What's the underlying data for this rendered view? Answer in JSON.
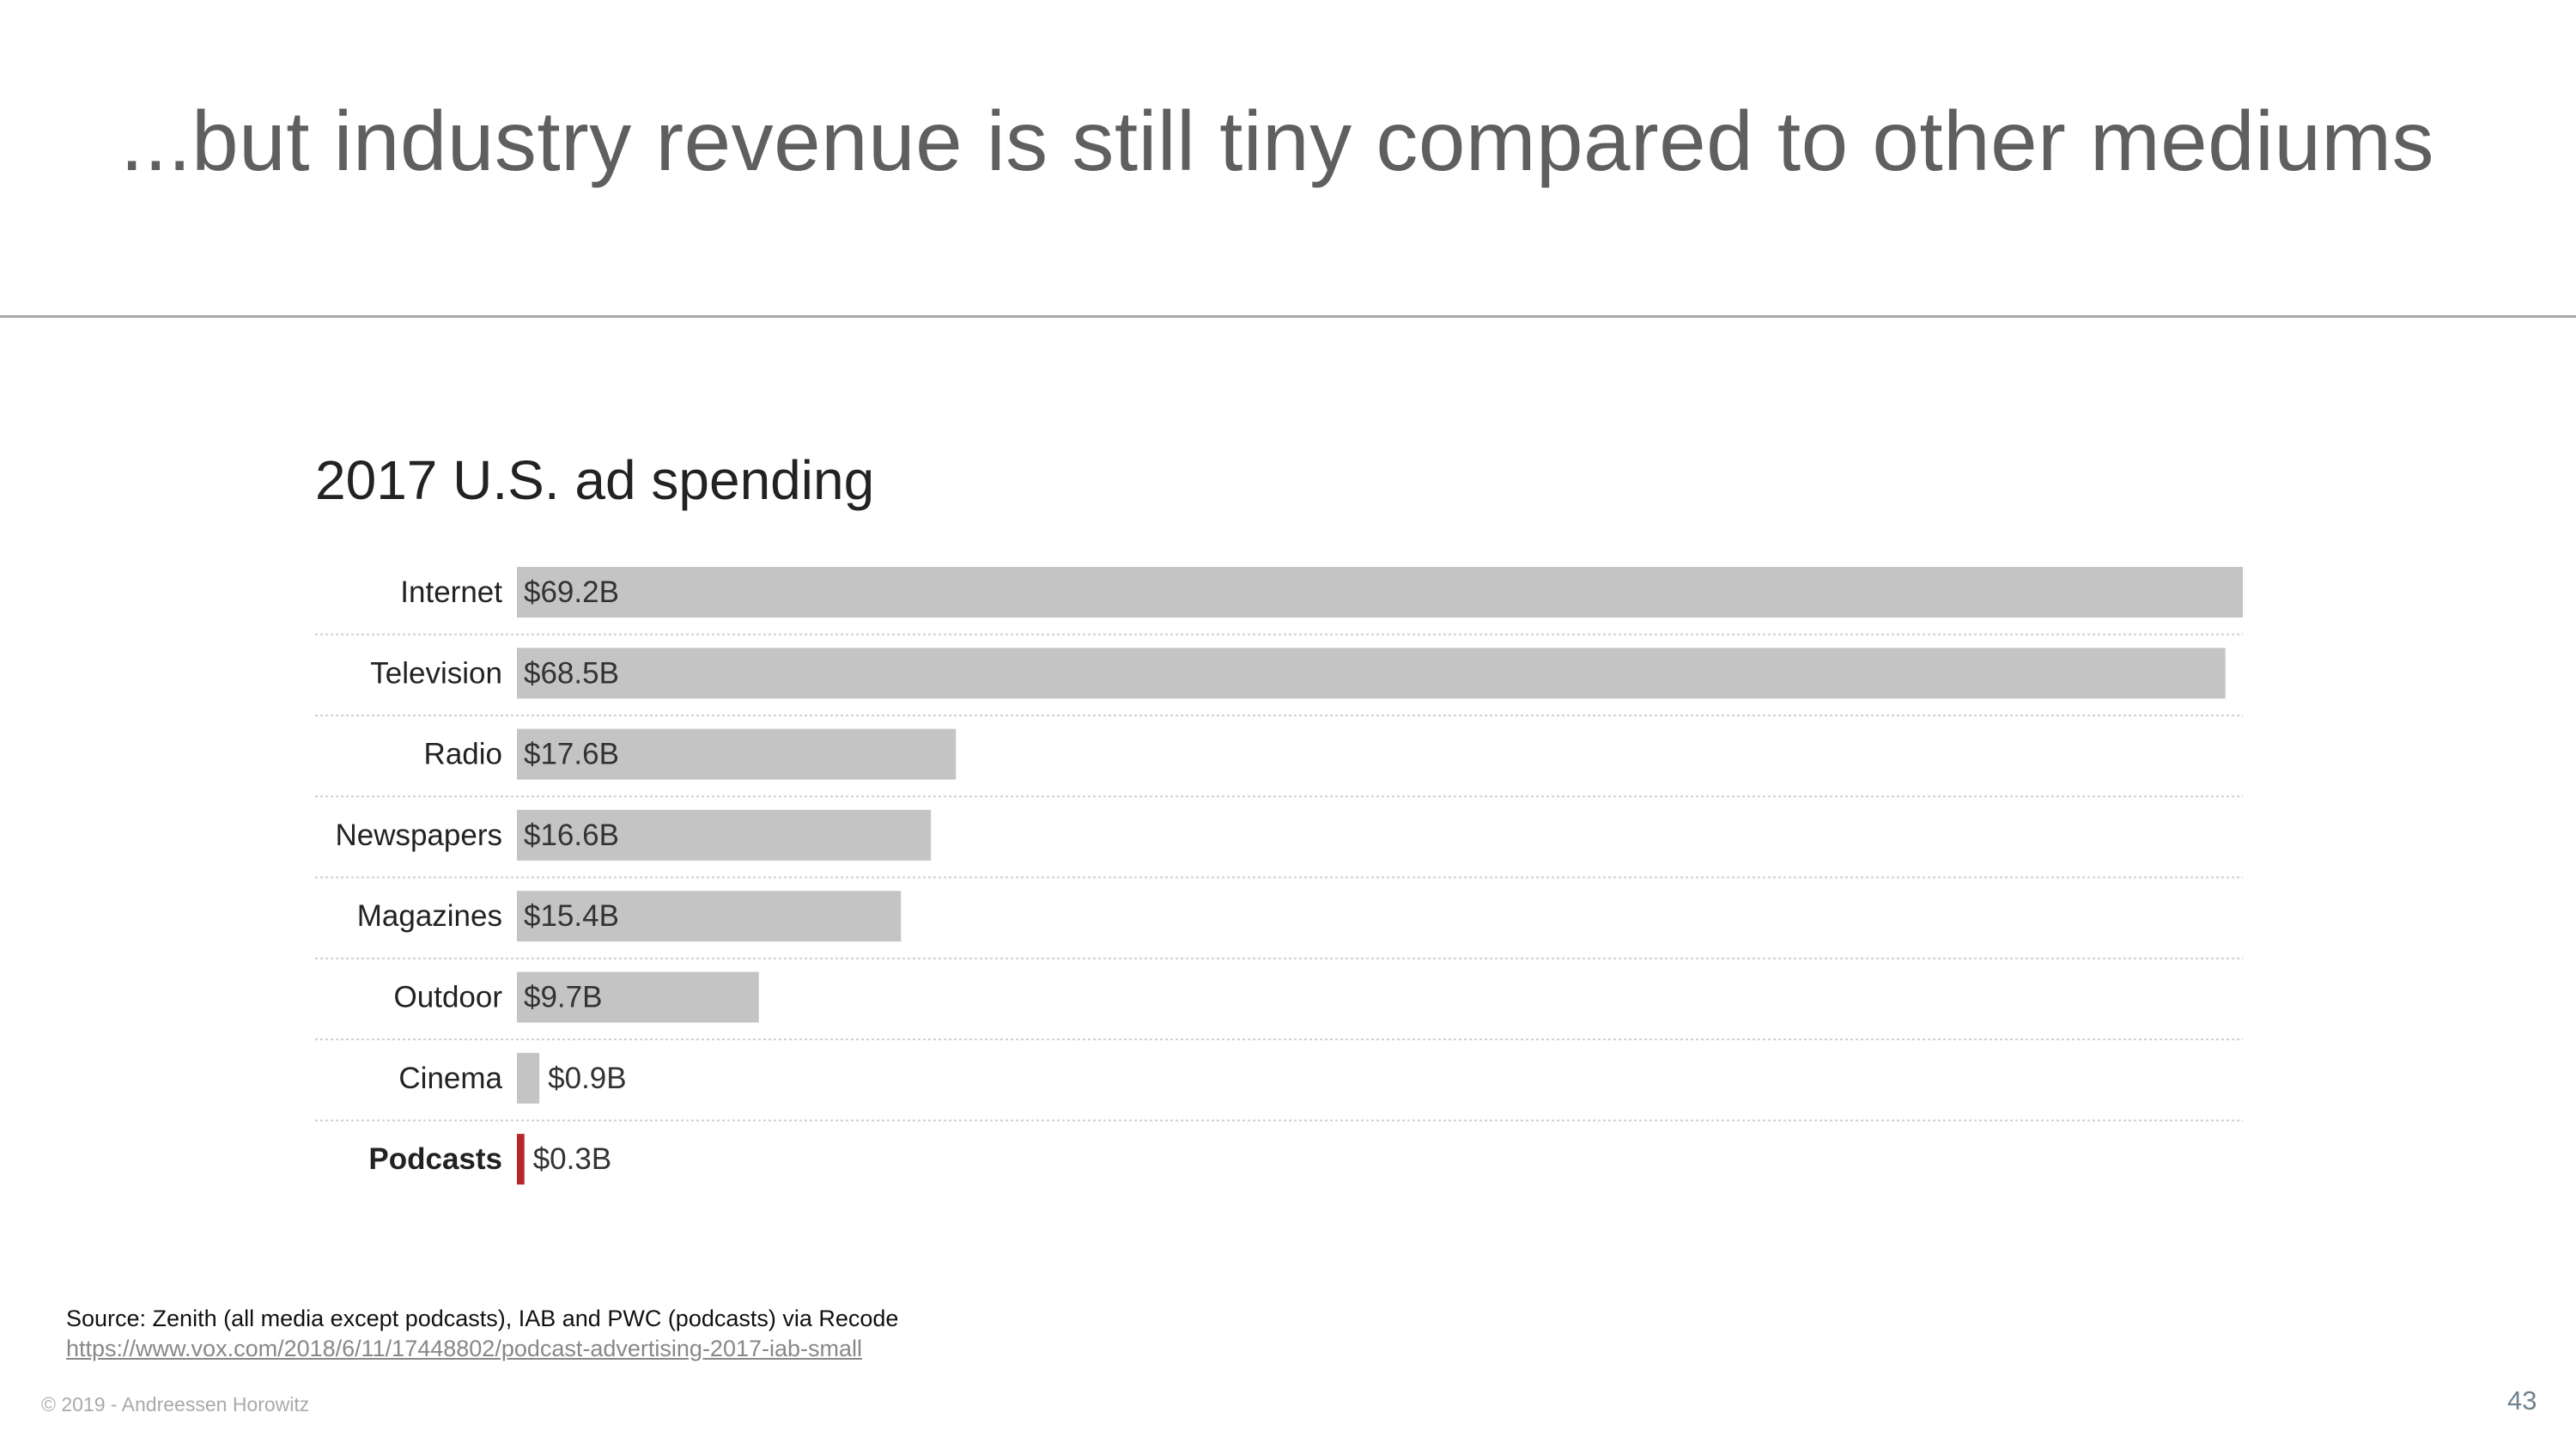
{
  "slide": {
    "title": "...but industry revenue is still tiny compared to other mediums",
    "source": "Source: Zenith (all media except podcasts), IAB and PWC (podcasts) via Recode",
    "source_link": "https://www.vox.com/2018/6/11/17448802/podcast-advertising-2017-iab-small",
    "copyright": "© 2019 - Andreessen Horowitz",
    "page_number": "43"
  },
  "chart_data": {
    "type": "bar",
    "orientation": "horizontal",
    "title": "2017 U.S. ad spending",
    "xlabel": "",
    "ylabel": "",
    "unit": "$B",
    "xlim": [
      0,
      69.2
    ],
    "grid": false,
    "categories": [
      "Internet",
      "Television",
      "Radio",
      "Newspapers",
      "Magazines",
      "Outdoor",
      "Cinema",
      "Podcasts"
    ],
    "values": [
      69.2,
      68.5,
      17.6,
      16.6,
      15.4,
      9.7,
      0.9,
      0.3
    ],
    "labels": [
      "$69.2B",
      "$68.5B",
      "$17.6B",
      "$16.6B",
      "$15.4B",
      "$9.7B",
      "$0.9B",
      "$0.3B"
    ],
    "highlight": "Podcasts",
    "colors": {
      "bar": "#c4c4c4",
      "highlight": "#b8272c"
    }
  }
}
